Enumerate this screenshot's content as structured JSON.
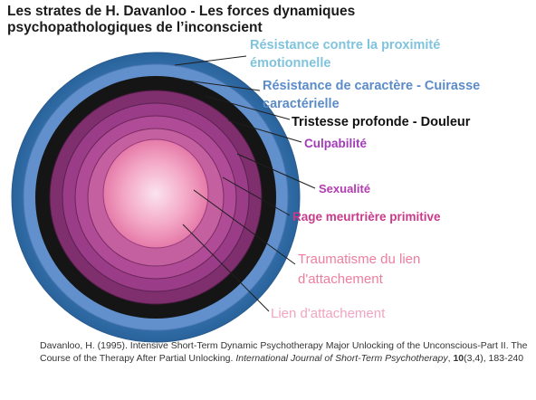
{
  "title": "Les strates de H. Davanloo - Les forces dynamiques psychopathologiques de l’inconscient",
  "layers": [
    {
      "label": "Résistance contre la proximité émotionnelle",
      "color": "#2f6fa8"
    },
    {
      "label": "Résistance de caractère - Cuirasse caractérielle",
      "color": "#5f8fcf"
    },
    {
      "label": "Tristesse profonde - Douleur",
      "color": "#141414"
    },
    {
      "label": "Culpabilité",
      "color": "#7f2e6c"
    },
    {
      "label": "Sexualité",
      "color": "#9c3b86"
    },
    {
      "label": "Rage meurtrière primitive",
      "color": "#b24a96"
    },
    {
      "label": "Traumatisme du lien d'attachement",
      "color": "#c8629f"
    },
    {
      "label": "Lien d'attachement",
      "color": "#f8c6d9"
    }
  ],
  "citation": {
    "text": "Davanloo, H. (1995). Intensive Short-Term Dynamic Psychotherapy Major Unlocking of the Unconscious-Part II. The Course of the Therapy After Partial Unlocking.",
    "journal": "International Journal of Short-Term Psychotherapy",
    "volume": "10",
    "issue_pages": "(3,4), 183-240"
  }
}
